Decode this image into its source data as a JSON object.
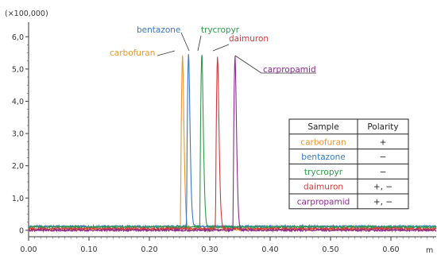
{
  "chart_data": {
    "type": "line",
    "title": "",
    "xlabel": "m",
    "ylabel": "",
    "multiplier_label": "(×100,000)",
    "xlim": [
      0.0,
      0.675
    ],
    "ylim": [
      -0.2,
      6.45
    ],
    "x_ticks": [
      0.0,
      0.1,
      0.2,
      0.3,
      0.4,
      0.5,
      0.6
    ],
    "x_tick_labels": [
      "0.00",
      "0.10",
      "0.20",
      "0.30",
      "0.40",
      "0.50",
      "0.60"
    ],
    "y_ticks": [
      0,
      1,
      2,
      3,
      4,
      5,
      6
    ],
    "y_tick_labels": [
      "0",
      "1,0",
      "2,0",
      "3,0",
      "4,0",
      "5,0",
      "6,0"
    ],
    "grid": false,
    "series": [
      {
        "name": "carbofuran",
        "color": "#e8962a",
        "peak_x": 0.255,
        "peak_y": 5.38,
        "baseline": 0.02
      },
      {
        "name": "bentazone",
        "color": "#3a78c0",
        "peak_x": 0.265,
        "peak_y": 5.36,
        "baseline": 0.12
      },
      {
        "name": "trycropyr",
        "color": "#2e9a4a",
        "peak_x": 0.287,
        "peak_y": 5.4,
        "baseline": 0.1
      },
      {
        "name": "daimuron",
        "color": "#d03a3a",
        "peak_x": 0.313,
        "peak_y": 5.36,
        "baseline": 0.05
      },
      {
        "name": "carpropamid",
        "color": "#8a2a8e",
        "peak_x": 0.342,
        "peak_y": 5.38,
        "baseline": 0.0
      }
    ]
  },
  "legend_table": {
    "header_sample": "Sample",
    "header_polarity": "Polarity",
    "rows": [
      {
        "sample": "carbofuran",
        "polarity": "+",
        "color": "#e8962a"
      },
      {
        "sample": "bentazone",
        "polarity": "−",
        "color": "#3a78c0"
      },
      {
        "sample": "trycropyr",
        "polarity": "−",
        "color": "#2e9a4a"
      },
      {
        "sample": "daimuron",
        "polarity": "+, −",
        "color": "#d03a3a"
      },
      {
        "sample": "carpropamid",
        "polarity": "+, −",
        "color": "#8a2a8e"
      }
    ]
  }
}
